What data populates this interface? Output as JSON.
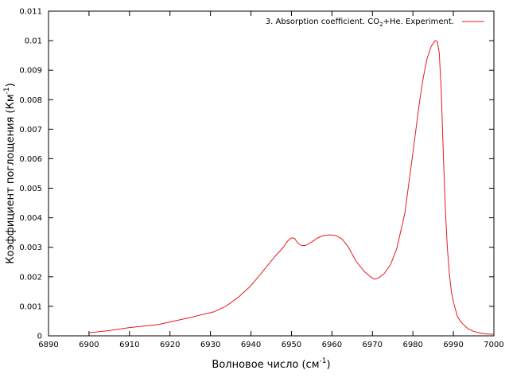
{
  "chart_data": {
    "type": "line",
    "xlabel": {
      "main": "Волновое число (см",
      "sup": "-1",
      "close": ")"
    },
    "ylabel": {
      "main": "Коэффициент поглощения (Км",
      "sup": "-1",
      "close": ")"
    },
    "xlim": [
      6890,
      7000
    ],
    "ylim": [
      0,
      0.011
    ],
    "x_ticks": [
      6890,
      6900,
      6910,
      6920,
      6930,
      6940,
      6950,
      6960,
      6970,
      6980,
      6990,
      7000
    ],
    "y_ticks": [
      0,
      0.001,
      0.002,
      0.003,
      0.004,
      0.005,
      0.006,
      0.007,
      0.008,
      0.009,
      0.01,
      0.011
    ],
    "x_tick_labels": [
      "6890",
      "6900",
      "6910",
      "6920",
      "6930",
      "6940",
      "6950",
      "6960",
      "6970",
      "6980",
      "6990",
      "7000"
    ],
    "y_tick_labels": [
      "0",
      "0.001",
      "0.002",
      "0.003",
      "0.004",
      "0.005",
      "0.006",
      "0.007",
      "0.008",
      "0.009",
      "0.01",
      "0.011"
    ],
    "grid": false,
    "legend_position": "top-right",
    "series": [
      {
        "name": {
          "pre": "3. Absorption coefficient. CO",
          "sub": "2",
          "post": "+He. Experiment."
        },
        "color": "#e41a1c",
        "x": [
          6900,
          6905,
          6910,
          6917,
          6925,
          6931,
          6934,
          6937,
          6940,
          6943,
          6946,
          6948,
          6949,
          6950,
          6950.8,
          6951.5,
          6952.5,
          6953.5,
          6955,
          6956.5,
          6958,
          6959.5,
          6961,
          6962.5,
          6964,
          6966,
          6968,
          6969.5,
          6970.5,
          6971.5,
          6973,
          6974.5,
          6976,
          6978,
          6980,
          6981.5,
          6982.5,
          6983.5,
          6984.5,
          6985.5,
          6986,
          6986.5,
          6987,
          6987.5,
          6988,
          6988.5,
          6989,
          6989.5,
          6990,
          6991,
          6992,
          6993.5,
          6995,
          6997,
          6998.5,
          7000
        ],
        "y": [
          0.0001,
          0.00018,
          0.00028,
          0.00038,
          0.00062,
          0.00082,
          0.00102,
          0.00132,
          0.0017,
          0.0022,
          0.0027,
          0.003,
          0.0032,
          0.00332,
          0.0033,
          0.00315,
          0.00306,
          0.00306,
          0.00318,
          0.00332,
          0.0034,
          0.00342,
          0.0034,
          0.00328,
          0.00302,
          0.00252,
          0.00218,
          0.002,
          0.00192,
          0.00196,
          0.00212,
          0.00242,
          0.00295,
          0.00415,
          0.0062,
          0.0078,
          0.0087,
          0.0094,
          0.0098,
          0.01,
          0.00998,
          0.0096,
          0.0083,
          0.0062,
          0.0043,
          0.003,
          0.0021,
          0.0015,
          0.00115,
          0.00065,
          0.00045,
          0.00025,
          0.00015,
          8e-05,
          6e-05,
          5e-05
        ]
      }
    ]
  }
}
